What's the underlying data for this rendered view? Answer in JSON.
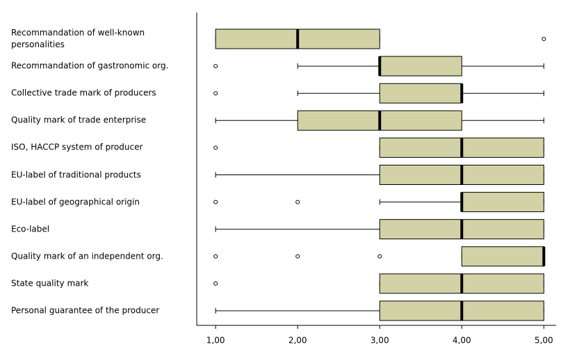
{
  "chart_data": {
    "type": "boxplot",
    "categories": [
      "Recommandation of well-known personalities",
      "Recommandation of gastronomic org.",
      "Collective trade mark of producers",
      "Quality mark of trade enterprise",
      "ISO, HACCP system of producer",
      "EU-label of traditional products",
      "EU-label of geographical origin",
      "Eco-label",
      "Quality mark of an independent org.",
      "State quality mark",
      "Personal guarantee of the producer"
    ],
    "min": [
      1,
      2,
      2,
      1,
      3,
      1,
      3,
      1,
      4,
      3,
      1
    ],
    "q1": [
      1,
      3,
      3,
      2,
      3,
      3,
      4,
      3,
      4,
      3,
      3
    ],
    "median": [
      2,
      3,
      4,
      3,
      4,
      4,
      4,
      4,
      5,
      4,
      4
    ],
    "q3": [
      3,
      4,
      4,
      4,
      5,
      5,
      5,
      5,
      5,
      5,
      5
    ],
    "max": [
      3,
      5,
      5,
      5,
      5,
      5,
      5,
      5,
      5,
      5,
      5
    ],
    "outliers": [
      [
        5
      ],
      [
        1
      ],
      [
        1
      ],
      [],
      [
        1
      ],
      [],
      [
        1,
        2
      ],
      [],
      [
        1,
        2,
        3
      ],
      [
        1
      ],
      []
    ],
    "color": "#d3d2a6",
    "xlim": [
      0.77,
      5.15
    ],
    "xticks": [
      {
        "value": 1,
        "label": "1,00"
      },
      {
        "value": 2,
        "label": "2,00"
      },
      {
        "value": 3,
        "label": "3,00"
      },
      {
        "value": 4,
        "label": "4,00"
      },
      {
        "value": 5,
        "label": "5,00"
      }
    ]
  }
}
